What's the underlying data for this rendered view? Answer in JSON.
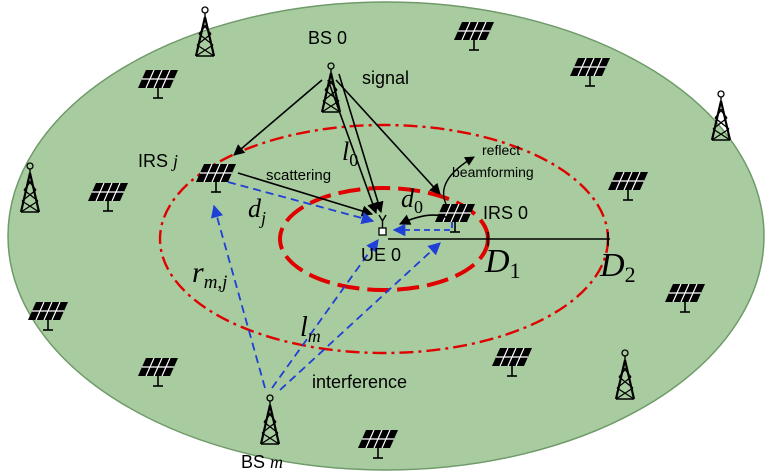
{
  "colors": {
    "field": "#a8cc9f",
    "field_stroke": "#6f9a6a",
    "red": "#e00000",
    "blue": "#1f3fd6",
    "black": "#000000"
  },
  "labels": {
    "bs0": "BS 0",
    "signal": "signal",
    "irsj_a": "IRS ",
    "irsj_b": "j",
    "scattering": "scattering",
    "l0_a": "l",
    "l0_b": "0",
    "reflect": "reflect",
    "beamforming": "beamforming",
    "d0_a": "d",
    "d0_b": "0",
    "irs0": "IRS 0",
    "dj_a": "d",
    "dj_b": "j",
    "ue0": "UE 0",
    "D1_a": "D",
    "D1_b": "1",
    "D2_a": "D",
    "D2_b": "2",
    "rmj_a": "r",
    "rmj_b": "m,j",
    "lm_a": "l",
    "lm_b": "m",
    "interference": "interference",
    "bsm_a": "BS ",
    "bsm_b": "m"
  },
  "icons": {
    "tower": "tower-icon",
    "irs_panel": "irs-panel-icon",
    "ue": "ue-icon"
  }
}
